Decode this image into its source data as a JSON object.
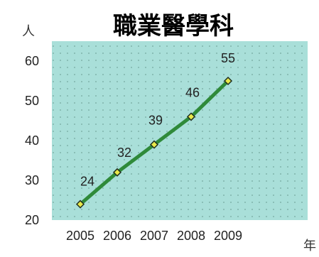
{
  "chart_data": {
    "type": "line",
    "title": "職業醫學科",
    "y_unit": "人",
    "x_unit": "年",
    "categories": [
      "2005",
      "2006",
      "2007",
      "2008",
      "2009"
    ],
    "series": [
      {
        "values": [
          24,
          32,
          39,
          46,
          55
        ]
      }
    ],
    "data_labels": [
      "24",
      "32",
      "39",
      "46",
      "55"
    ],
    "y_ticks": [
      "20",
      "30",
      "40",
      "50",
      "60"
    ],
    "ylim": [
      20,
      65
    ],
    "grid": false,
    "colors": {
      "plot_background": "#a9dfd9",
      "dots": "#7fb3ab",
      "line": "#2f8a3a",
      "marker_fill": "#e8e84a",
      "marker_stroke": "#1f2f1f"
    }
  }
}
